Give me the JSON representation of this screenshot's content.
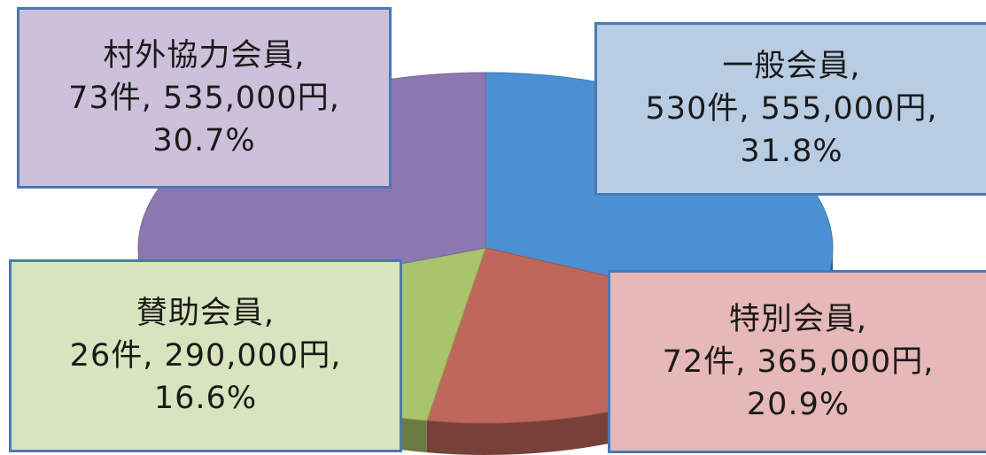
{
  "chart_data": {
    "type": "pie",
    "three_d": true,
    "legend": "none",
    "slices": [
      {
        "name": "一般会員",
        "count_label": "530件",
        "amount_label": "555,000円",
        "percent_label": "31.8%",
        "value": 31.8,
        "color": "#4a90d2",
        "box_color": "#b8cce4"
      },
      {
        "name": "特別会員",
        "count_label": "72件",
        "amount_label": "365,000円",
        "percent_label": "20.9%",
        "value": 20.9,
        "color": "#c0675c",
        "box_color": "#e6b8b7"
      },
      {
        "name": "賛助会員",
        "count_label": "26件",
        "amount_label": "290,000円",
        "percent_label": "16.6%",
        "value": 16.6,
        "color": "#a9c46a",
        "box_color": "#d7e4bd"
      },
      {
        "name": "村外協力会員",
        "count_label": "73件",
        "amount_label": "535,000円",
        "percent_label": "30.7%",
        "value": 30.7,
        "color": "#8c78b0",
        "box_color": "#ccc0da"
      }
    ]
  }
}
